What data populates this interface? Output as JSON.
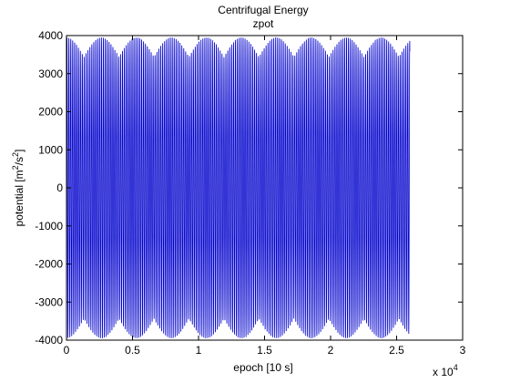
{
  "chart_data": {
    "type": "line",
    "title": "Centrifugal Energy",
    "subtitle": "zpot",
    "xlabel": "epoch [10 s]",
    "ylabel_main": "potential [m",
    "ylabel_sup1": "2",
    "ylabel_mid": "/s",
    "ylabel_sup2": "2",
    "ylabel_end": "]",
    "x_multiplier_label": "x 10",
    "x_multiplier_exp": "4",
    "xlim": [
      0,
      30000
    ],
    "ylim": [
      -4000,
      4000
    ],
    "xticks": [
      0,
      5000,
      10000,
      15000,
      20000,
      25000,
      30000
    ],
    "xtick_labels": [
      "0",
      "0.5",
      "1",
      "1.5",
      "2",
      "2.5",
      "3"
    ],
    "yticks": [
      -4000,
      -3000,
      -2000,
      -1000,
      0,
      1000,
      2000,
      3000,
      4000
    ],
    "ytick_labels": [
      "-4000",
      "-3000",
      "-2000",
      "-1000",
      "0",
      "1000",
      "2000",
      "3000",
      "4000"
    ],
    "grid": false,
    "series": [
      {
        "color": "#0000cc",
        "x_start": 0,
        "x_end": 26000,
        "amplitude": 3950,
        "carrier_period": 145,
        "envelope_period": 2650,
        "envelope_floor": 0.87
      }
    ]
  }
}
